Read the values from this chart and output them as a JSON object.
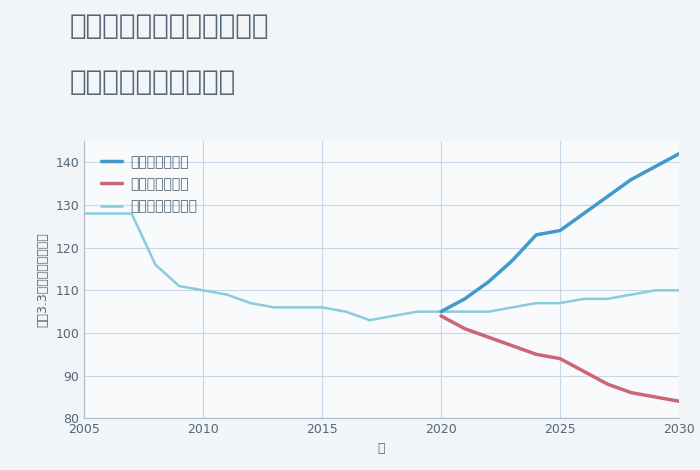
{
  "title_line1": "奈良県奈良市学園新田町の",
  "title_line2": "中古戸建ての価格推移",
  "xlabel": "年",
  "ylabel": "坪（3.3㎡）単価（万円）",
  "ylim": [
    80,
    145
  ],
  "xlim": [
    2005,
    2030
  ],
  "yticks": [
    80,
    90,
    100,
    110,
    120,
    130,
    140
  ],
  "xticks": [
    2005,
    2010,
    2015,
    2020,
    2025,
    2030
  ],
  "background_color": "#f2f5f8",
  "plot_bg_color": "#f8fafc",
  "grid_color": "#c8d8e8",
  "good_scenario": {
    "label": "グッドシナリオ",
    "color": "#4499cc",
    "x": [
      2020,
      2021,
      2022,
      2023,
      2024,
      2025,
      2026,
      2027,
      2028,
      2029,
      2030
    ],
    "y": [
      105,
      108,
      112,
      117,
      123,
      124,
      128,
      132,
      136,
      139,
      142
    ]
  },
  "bad_scenario": {
    "label": "バッドシナリオ",
    "color": "#cc6677",
    "x": [
      2020,
      2021,
      2022,
      2023,
      2024,
      2025,
      2026,
      2027,
      2028,
      2029,
      2030
    ],
    "y": [
      104,
      101,
      99,
      97,
      95,
      94,
      91,
      88,
      86,
      85,
      84
    ]
  },
  "normal_scenario": {
    "label": "ノーマルシナリオ",
    "color": "#88ccdd",
    "x": [
      2005,
      2006,
      2007,
      2008,
      2009,
      2010,
      2011,
      2012,
      2013,
      2014,
      2015,
      2016,
      2017,
      2018,
      2019,
      2020,
      2021,
      2022,
      2023,
      2024,
      2025,
      2026,
      2027,
      2028,
      2029,
      2030
    ],
    "y": [
      128,
      128,
      128,
      116,
      111,
      110,
      109,
      107,
      106,
      106,
      106,
      105,
      103,
      104,
      105,
      105,
      105,
      105,
      106,
      107,
      107,
      108,
      108,
      109,
      110,
      110
    ]
  },
  "title_color": "#556677",
  "title_fontsize": 20,
  "legend_fontsize": 10,
  "axis_fontsize": 9,
  "tick_fontsize": 9
}
